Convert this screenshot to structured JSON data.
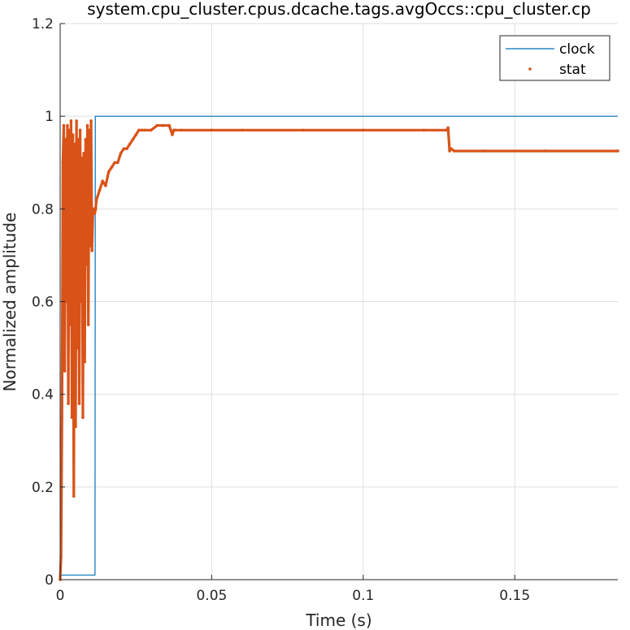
{
  "chart_data": {
    "type": "line",
    "title": "system.cpu_cluster.cpus.dcache.tags.avgOccs::cpu_cluster.cp",
    "xlabel": "Time (s)",
    "ylabel": "Normalized amplitude",
    "xlim": [
      0,
      0.184
    ],
    "ylim": [
      0,
      1.2
    ],
    "xticks": [
      0,
      0.05,
      0.1,
      0.15
    ],
    "xtick_labels": [
      "0",
      "0.05",
      "0.1",
      "0.15"
    ],
    "yticks": [
      0,
      0.2,
      0.4,
      0.6,
      0.8,
      1.0,
      1.2
    ],
    "ytick_labels": [
      "0",
      "0.2",
      "0.4",
      "0.6",
      "0.8",
      "1",
      "1.2"
    ],
    "grid": true,
    "legend_position": "top-right",
    "series": [
      {
        "name": "clock",
        "style": "line",
        "color": "#0072BD",
        "x": [
          0,
          0.0003,
          0.0115,
          0.0116,
          0.184
        ],
        "y": [
          0,
          0.01,
          0.01,
          1.0,
          1.0
        ]
      },
      {
        "name": "stat",
        "style": "dots",
        "color": "#D95319",
        "x": [
          0,
          0.0003,
          0.0006,
          0.0009,
          0.0012,
          0.0015,
          0.0018,
          0.0021,
          0.0024,
          0.0027,
          0.003,
          0.0033,
          0.0036,
          0.0039,
          0.0042,
          0.0045,
          0.0048,
          0.0051,
          0.0054,
          0.0057,
          0.006,
          0.0063,
          0.0066,
          0.0069,
          0.0072,
          0.0075,
          0.0078,
          0.0081,
          0.0084,
          0.0087,
          0.009,
          0.0093,
          0.0096,
          0.0099,
          0.0102,
          0.0105,
          0.0108,
          0.0111,
          0.0114,
          0.0117,
          0.012,
          0.013,
          0.014,
          0.015,
          0.016,
          0.017,
          0.018,
          0.019,
          0.02,
          0.021,
          0.022,
          0.023,
          0.024,
          0.025,
          0.026,
          0.027,
          0.028,
          0.03,
          0.032,
          0.034,
          0.036,
          0.037,
          0.0375,
          0.038,
          0.04,
          0.05,
          0.06,
          0.08,
          0.1,
          0.12,
          0.1275,
          0.128,
          0.1285,
          0.129,
          0.13,
          0.14,
          0.16,
          0.184
        ],
        "y": [
          0,
          0.05,
          0.35,
          0.9,
          0.98,
          0.45,
          0.95,
          0.6,
          0.98,
          0.38,
          0.97,
          0.55,
          0.99,
          0.35,
          0.96,
          0.18,
          0.94,
          0.33,
          0.99,
          0.5,
          0.95,
          0.38,
          0.97,
          0.6,
          0.91,
          0.35,
          0.92,
          0.47,
          0.95,
          0.68,
          0.98,
          0.55,
          0.97,
          0.72,
          0.99,
          0.71,
          0.79,
          0.8,
          0.79,
          0.8,
          0.82,
          0.84,
          0.86,
          0.85,
          0.88,
          0.89,
          0.9,
          0.9,
          0.92,
          0.93,
          0.93,
          0.94,
          0.95,
          0.96,
          0.97,
          0.97,
          0.97,
          0.97,
          0.98,
          0.98,
          0.98,
          0.96,
          0.97,
          0.97,
          0.97,
          0.97,
          0.97,
          0.97,
          0.97,
          0.97,
          0.97,
          0.975,
          0.925,
          0.93,
          0.925,
          0.925,
          0.925,
          0.925
        ]
      }
    ]
  }
}
